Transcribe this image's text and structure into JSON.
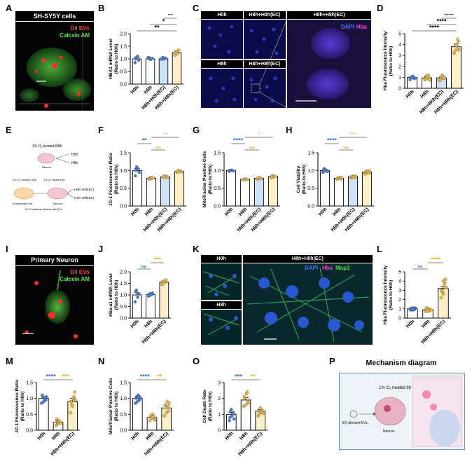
{
  "panels": {
    "A": {
      "letter": "A",
      "title": "SH-SY5Y cells",
      "legend": [
        "DiI EVs",
        "Calcein AM"
      ]
    },
    "C": {
      "letter": "C",
      "tiles": [
        "H0h",
        "H8h+H0h(EC)",
        "H8h",
        "H8h+H8h(EC)",
        "H8h+H8h(EC)"
      ],
      "legend": [
        "DAPI",
        "Hba"
      ]
    },
    "E": {
      "letter": "E",
      "lines": [
        "1% O₂ treated 0/8h",
        "Neuron",
        "H0h",
        "H8h",
        "1% O₂ treated 0/8h",
        "1% O₂ treated 8h",
        "Endothelial Cell",
        "Neuron",
        "EC Conditional Medium with EVs",
        "H8h+H0h(EC)",
        "H8h+H8h(EC)"
      ]
    },
    "I": {
      "letter": "I",
      "title": "Primary Neuron",
      "legend": [
        "DiI EVs",
        "Calcein AM"
      ]
    },
    "K": {
      "letter": "K",
      "tiles": [
        "H0h",
        "H8h+H0h(EC)",
        "H8h"
      ],
      "legend": [
        "DAPI",
        "Hba",
        "Map2"
      ]
    },
    "P": {
      "letter": "P",
      "title": "Mechanism diagram",
      "lines": [
        "1% O₂ treated 8h",
        "EC-derived EVs",
        "Neuron"
      ]
    }
  },
  "colors": {
    "white_bar": "#ffffff",
    "blue_bar": "#cfe0f7",
    "yellow_bar": "#fdf0c6",
    "blue_dot": "#4a7fd6",
    "orange_dot": "#e8b84a",
    "sig_blue": "#2f6fd8",
    "sig_yellow": "#e6b81c",
    "sig_black": "#000000",
    "sig_gray": "#7f7f7f"
  },
  "chart_data": [
    {
      "id": "B",
      "type": "bar",
      "letter": "B",
      "ylabel": "HBA1 mRNA Level",
      "ylabel2": "(Ratio to H0h)",
      "categories": [
        "H0h",
        "H8h",
        "H8h+H0h(EC)",
        "H8h+H8h(EC)"
      ],
      "values": [
        1.0,
        1.0,
        1.0,
        1.25
      ],
      "errors": [
        0.06,
        0.05,
        0.05,
        0.06
      ],
      "ylim": [
        0,
        2.0
      ],
      "yticks": [
        "0.0",
        "0.5",
        "1.0",
        "1.5",
        "2.0"
      ],
      "points": [
        [
          0.85,
          1.05,
          1.1,
          0.95,
          1.0
        ],
        [
          1.05,
          1.0,
          0.98,
          1.02,
          1.05
        ],
        [
          0.98,
          1.05,
          1.0,
          1.03,
          1.02
        ],
        [
          1.15,
          1.3,
          1.2,
          1.35,
          1.25
        ]
      ],
      "bar_colors": [
        "white",
        "white",
        "blue",
        "yellow"
      ],
      "dot_colors": [
        "blue",
        "blue",
        "blue",
        "orange"
      ],
      "sigs": [
        {
          "from": 0,
          "to": 3,
          "level": 0,
          "text": "**",
          "color": "black"
        },
        {
          "from": 1,
          "to": 3,
          "level": 1,
          "text": "*",
          "color": "black"
        },
        {
          "from": 2,
          "to": 3,
          "level": 2,
          "text": "**",
          "color": "black"
        }
      ]
    },
    {
      "id": "D",
      "type": "bar",
      "letter": "D",
      "ylabel": "Hba Fluorescence Intensity",
      "ylabel2": "(Ratio to H0h)",
      "categories": [
        "H0h",
        "H8h",
        "H8h+H0h(EC)",
        "H8h+H8h(EC)"
      ],
      "values": [
        1.0,
        0.95,
        0.95,
        3.8
      ],
      "errors": [
        0.05,
        0.08,
        0.08,
        0.25
      ],
      "ylim": [
        0,
        5
      ],
      "yticks": [
        "0",
        "1",
        "2",
        "3",
        "4",
        "5"
      ],
      "points": [
        [
          0.8,
          1.0,
          1.1,
          0.9,
          1.0,
          1.05,
          0.95,
          0.9
        ],
        [
          0.8,
          1.1,
          0.9,
          1.0,
          0.85,
          1.05,
          1.2,
          0.75
        ],
        [
          0.7,
          1.0,
          1.2,
          0.9,
          0.8,
          1.1,
          0.95,
          1.0
        ],
        [
          3.2,
          4.0,
          3.6,
          4.3,
          3.4,
          3.9,
          4.5,
          3.5
        ]
      ],
      "bar_colors": [
        "white",
        "white",
        "blue",
        "yellow"
      ],
      "dot_colors": [
        "blue",
        "orange",
        "orange",
        "orange"
      ],
      "sigs": [
        {
          "from": 0,
          "to": 3,
          "level": 0,
          "text": "****",
          "color": "black"
        },
        {
          "from": 1,
          "to": 3,
          "level": 1,
          "text": "****",
          "color": "black"
        },
        {
          "from": 2,
          "to": 3,
          "level": 2,
          "text": "****",
          "color": "black"
        }
      ]
    },
    {
      "id": "F",
      "type": "bar",
      "letter": "F",
      "ylabel": "JC-1 Fluorescence Ratio",
      "ylabel2": "(Ratio to H0h)",
      "categories": [
        "H0h",
        "H8h",
        "H8h+H0h(EC)",
        "H8h+H8h(EC)"
      ],
      "values": [
        1.0,
        0.78,
        0.82,
        0.97
      ],
      "errors": [
        0.05,
        0.03,
        0.03,
        0.03
      ],
      "ylim": [
        0,
        1.5
      ],
      "yticks": [
        "0.0",
        "0.5",
        "1.0",
        "1.5"
      ],
      "points": [
        [
          0.85,
          1.1,
          1.05,
          0.95,
          1.0
        ],
        [
          0.75,
          0.8,
          0.78,
          0.8,
          0.76
        ],
        [
          0.8,
          0.85,
          0.82,
          0.8,
          0.84
        ],
        [
          0.95,
          1.0,
          0.98,
          0.96,
          0.97
        ]
      ],
      "bar_colors": [
        "white",
        "white",
        "blue",
        "yellow"
      ],
      "dot_colors": [
        "blue",
        "orange",
        "orange",
        "orange"
      ],
      "sigs": [
        {
          "from": 0,
          "to": 1,
          "level": 1,
          "text": "**",
          "color": "blue"
        },
        {
          "from": 1,
          "to": 2,
          "level": 0,
          "text": "ns",
          "color": "yellow"
        },
        {
          "from": 1,
          "to": 3,
          "level": 2,
          "text": "**",
          "color": "yellow"
        }
      ]
    },
    {
      "id": "G",
      "type": "bar",
      "letter": "G",
      "ylabel": "MitoTracker Positive Cells",
      "ylabel2": "(Ratio to H0h)",
      "categories": [
        "H0h",
        "H8h",
        "H8h+H0h(EC)",
        "H8h+H8h(EC)"
      ],
      "values": [
        1.0,
        0.75,
        0.78,
        0.83
      ],
      "errors": [
        0.01,
        0.01,
        0.02,
        0.02
      ],
      "ylim": [
        0,
        1.5
      ],
      "yticks": [
        "0.0",
        "0.5",
        "1.0",
        "1.5"
      ],
      "points": [
        [
          0.98,
          1.0,
          1.01,
          0.99,
          1.0
        ],
        [
          0.74,
          0.75,
          0.76,
          0.75,
          0.74
        ],
        [
          0.76,
          0.78,
          0.8,
          0.77,
          0.79
        ],
        [
          0.8,
          0.85,
          0.82,
          0.84,
          0.83
        ]
      ],
      "bar_colors": [
        "white",
        "white",
        "blue",
        "yellow"
      ],
      "dot_colors": [
        "blue",
        "orange",
        "orange",
        "orange"
      ],
      "sigs": [
        {
          "from": 0,
          "to": 1,
          "level": 1,
          "text": "****",
          "color": "blue"
        },
        {
          "from": 1,
          "to": 2,
          "level": 0,
          "text": "ns",
          "color": "yellow"
        },
        {
          "from": 1,
          "to": 3,
          "level": 2,
          "text": "*",
          "color": "yellow"
        }
      ]
    },
    {
      "id": "H",
      "type": "bar",
      "letter": "H",
      "ylabel": "Cell Viability",
      "ylabel2": "(Ratio to H0h)",
      "categories": [
        "H0h",
        "H8h",
        "H8h+H0h(EC)",
        "H8h+H8h(EC)"
      ],
      "values": [
        1.0,
        0.78,
        0.82,
        0.95
      ],
      "errors": [
        0.02,
        0.02,
        0.02,
        0.02
      ],
      "ylim": [
        0,
        1.5
      ],
      "yticks": [
        "0.0",
        "0.5",
        "1.0",
        "1.5"
      ],
      "points": [
        [
          0.95,
          1.05,
          1.0,
          0.98,
          1.02,
          1.0,
          1.01,
          0.97
        ],
        [
          0.76,
          0.78,
          0.8,
          0.77,
          0.79,
          0.78,
          0.77,
          0.8
        ],
        [
          0.8,
          0.82,
          0.84,
          0.81,
          0.83,
          0.82,
          0.8,
          0.85
        ],
        [
          0.9,
          0.95,
          0.98,
          0.93,
          0.96,
          0.97,
          0.92,
          0.99
        ]
      ],
      "bar_colors": [
        "white",
        "white",
        "blue",
        "yellow"
      ],
      "dot_colors": [
        "blue",
        "orange",
        "orange",
        "orange"
      ],
      "sigs": [
        {
          "from": 0,
          "to": 1,
          "level": 1,
          "text": "****",
          "color": "blue"
        },
        {
          "from": 1,
          "to": 2,
          "level": 0,
          "text": "ns",
          "color": "yellow"
        },
        {
          "from": 1,
          "to": 3,
          "level": 2,
          "text": "***",
          "color": "yellow"
        }
      ]
    },
    {
      "id": "J",
      "type": "bar",
      "letter": "J",
      "ylabel": "Hba-a1 mRNA Level",
      "ylabel2": "(Ratio to H0h)",
      "categories": [
        "H0h",
        "H8h",
        "H8h+H8h(EC)"
      ],
      "values": [
        1.0,
        1.02,
        1.55
      ],
      "errors": [
        0.1,
        0.04,
        0.06
      ],
      "ylim": [
        0,
        2.0
      ],
      "yticks": [
        "0.0",
        "0.5",
        "1.0",
        "1.5",
        "2.0"
      ],
      "points": [
        [
          0.7,
          1.2,
          0.9,
          1.05,
          1.15
        ],
        [
          0.95,
          1.05,
          1.0,
          1.08,
          0.98
        ],
        [
          1.45,
          1.6,
          1.55,
          1.65,
          1.5
        ]
      ],
      "bar_colors": [
        "white",
        "white",
        "yellow"
      ],
      "dot_colors": [
        "blue",
        "blue",
        "orange"
      ],
      "sigs": [
        {
          "from": 0,
          "to": 1,
          "level": 0,
          "text": "ns",
          "color": "blue"
        },
        {
          "from": 1,
          "to": 2,
          "level": 1,
          "text": "***",
          "color": "yellow"
        }
      ]
    },
    {
      "id": "L",
      "type": "bar",
      "letter": "L",
      "ylabel": "Hba Fluorescence Intensity",
      "ylabel2": "(Ratio to H0h)",
      "categories": [
        "H0h",
        "H8h",
        "H8h+H8h(EC)"
      ],
      "values": [
        1.0,
        0.9,
        3.2
      ],
      "errors": [
        0.04,
        0.06,
        0.25
      ],
      "ylim": [
        0,
        5
      ],
      "yticks": [
        "0",
        "1",
        "2",
        "3",
        "4",
        "5"
      ],
      "points": [
        [
          0.9,
          1.0,
          1.1,
          0.95,
          1.05,
          0.85,
          1.0,
          1.1,
          0.95,
          1.0
        ],
        [
          0.7,
          0.9,
          1.0,
          0.8,
          1.1,
          0.85,
          0.95,
          0.9,
          1.0,
          0.75
        ],
        [
          2.2,
          2.8,
          3.5,
          4.2,
          3.0,
          2.6,
          3.8,
          3.3,
          2.9,
          4.0
        ]
      ],
      "bar_colors": [
        "white",
        "white",
        "yellow"
      ],
      "dot_colors": [
        "blue",
        "orange",
        "orange"
      ],
      "sigs": [
        {
          "from": 0,
          "to": 1,
          "level": 0,
          "text": "ns",
          "color": "blue"
        },
        {
          "from": 1,
          "to": 2,
          "level": 1,
          "text": "****",
          "color": "yellow"
        }
      ]
    },
    {
      "id": "M",
      "type": "bar",
      "letter": "M",
      "ylabel": "JC-1 Fluorescence Ratio",
      "ylabel2": "(Ratio to H0h)",
      "categories": [
        "H0h",
        "H8h",
        "H8h+H8h(EC)"
      ],
      "values": [
        1.0,
        0.25,
        0.9
      ],
      "errors": [
        0.05,
        0.04,
        0.1
      ],
      "ylim": [
        0,
        1.5
      ],
      "yticks": [
        "0.0",
        "0.5",
        "1.0",
        "1.5"
      ],
      "points": [
        [
          0.85,
          1.05,
          1.0,
          0.95,
          1.1,
          0.9,
          1.0,
          1.05
        ],
        [
          0.15,
          0.2,
          0.3,
          0.25,
          0.35,
          0.2,
          0.28,
          0.22
        ],
        [
          0.55,
          0.8,
          1.0,
          1.2,
          0.9,
          0.75,
          1.05,
          0.95
        ]
      ],
      "bar_colors": [
        "white",
        "white",
        "yellow"
      ],
      "dot_colors": [
        "blue",
        "orange",
        "orange"
      ],
      "sigs": [
        {
          "from": 0,
          "to": 1,
          "level": 0,
          "text": "****",
          "color": "blue"
        },
        {
          "from": 1,
          "to": 2,
          "level": 0,
          "text": "***",
          "color": "yellow"
        }
      ]
    },
    {
      "id": "N",
      "type": "bar",
      "letter": "N",
      "ylabel": "MitoTracker Positive Cells",
      "ylabel2": "(Ratio to H0h)",
      "categories": [
        "H0h",
        "H8h",
        "H8h+H8h(EC)"
      ],
      "values": [
        1.0,
        0.4,
        0.7
      ],
      "errors": [
        0.05,
        0.05,
        0.08
      ],
      "ylim": [
        0,
        1.5
      ],
      "yticks": [
        "0.0",
        "0.5",
        "1.0",
        "1.5"
      ],
      "points": [
        [
          0.85,
          1.05,
          1.1,
          0.95,
          1.0,
          0.9,
          1.08,
          1.02
        ],
        [
          0.3,
          0.4,
          0.5,
          0.35,
          0.45,
          0.38,
          0.42,
          0.32
        ],
        [
          0.45,
          0.7,
          0.9,
          0.6,
          0.8,
          0.55,
          0.75,
          0.85
        ]
      ],
      "bar_colors": [
        "white",
        "white",
        "yellow"
      ],
      "dot_colors": [
        "blue",
        "orange",
        "orange"
      ],
      "sigs": [
        {
          "from": 0,
          "to": 1,
          "level": 0,
          "text": "****",
          "color": "blue"
        },
        {
          "from": 1,
          "to": 2,
          "level": 0,
          "text": "**",
          "color": "yellow"
        }
      ]
    },
    {
      "id": "O",
      "type": "bar",
      "letter": "O",
      "ylabel": "Cell Death Rate",
      "ylabel2": "(Ratio to H0h)",
      "categories": [
        "H0h",
        "H8h",
        "H8h+H8h(EC)"
      ],
      "values": [
        1.0,
        1.9,
        1.2
      ],
      "errors": [
        0.12,
        0.15,
        0.1
      ],
      "ylim": [
        0,
        3
      ],
      "yticks": [
        "0",
        "1",
        "2",
        "3"
      ],
      "points": [
        [
          0.6,
          1.2,
          0.9,
          1.1,
          0.8,
          1.3,
          1.0,
          0.7
        ],
        [
          1.5,
          2.0,
          2.3,
          1.8,
          2.1,
          1.6,
          2.4,
          1.7
        ],
        [
          0.9,
          1.1,
          1.3,
          1.2,
          1.0,
          1.4,
          1.15,
          1.05
        ]
      ],
      "bar_colors": [
        "white",
        "white",
        "yellow"
      ],
      "dot_colors": [
        "blue",
        "orange",
        "orange"
      ],
      "sigs": [
        {
          "from": 0,
          "to": 1,
          "level": 0,
          "text": "***",
          "color": "blue"
        },
        {
          "from": 1,
          "to": 2,
          "level": 0,
          "text": "**",
          "color": "yellow"
        }
      ]
    }
  ]
}
